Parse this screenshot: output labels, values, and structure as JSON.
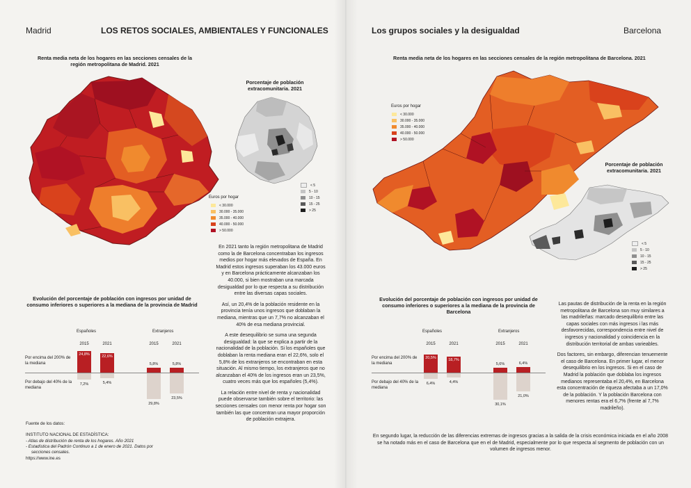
{
  "left": {
    "city": "Madrid",
    "section_title": "LOS RETOS SOCIALES, AMBIENTALES Y FUNCIONALES",
    "map_title": "Renta media neta de los hogares en las secciones censales de la región metropolitana de Madrid. 2021",
    "inset_title": "Porcentaje de población extracomunitaria. 2021",
    "inset_legend": [
      "< 5",
      "5 - 10",
      "10 - 15",
      "15 - 25",
      "> 25"
    ],
    "legend_title": "Euros por hogar",
    "legend": [
      "< 30.000",
      "30.000 - 35.000",
      "35.000 - 40.000",
      "40.000 - 50.000",
      "> 50.000"
    ],
    "text": [
      "En 2021 tanto la región metropolitana de Madrid como la de Barcelona concentraban los ingresos medios por hogar más elevados de España. En Madrid estos ingresos superaban los 43.000 euros y en Barcelona prácticamente alcanzaban los 40.000, si bien mostraban una marcada desigualdad por lo que respecta a su distribución entre las diversas capas sociales.",
      "Así, un 20,4% de la población residente en la provincia tenía unos ingresos que doblaban la mediana, mientras que un 7,7% no alcanzaban el 40% de esa mediana provincial.",
      "A este desequilibrio se suma una segunda desigualdad: la que se explica a partir de la nacionalidad de la población. Si los españoles que doblaban la renta mediana eran el 22,6%, solo el 5,8% de los extranjeros se encontraban en esta situación. Al mismo tiempo, los extranjeros que no alcanzaban el 40% de los ingresos eran un 23,5%, cuatro veces más que los españoles (5,4%).",
      "La relación entre nivel de renta y nacionalidad puede observarse también sobre el territorio: las secciones censales con menor renta por hogar son también las que concentran una mayor proporción de población extrajera."
    ],
    "chart": {
      "title": "Evolución del porcentaje de población con ingresos por unidad de consumo inferiores o superiores a la mediana de la provincia de Madrid",
      "group_labels": [
        "Españoles",
        "Extranjeros"
      ],
      "row_labels": [
        "Por encima del 200% de la mediana",
        "Por debajo del 40% de la mediana"
      ],
      "years": [
        "2015",
        "2021",
        "2015",
        "2021"
      ],
      "above": [
        "24,8%",
        "22,6%",
        "5,8%",
        "5,8%"
      ],
      "below": [
        "7,2%",
        "5,4%",
        "29,8%",
        "23,5%"
      ]
    },
    "source": {
      "label": "Fuente de los datos:",
      "org": "INSTITUTO NACIONAL DE ESTADÍSTICA:",
      "items": [
        "- Atlas de distribución de renta de los hogares. Año 2021",
        "- Estadística del Padrón Continuo a 1 de enero de 2021. Datos por",
        "secciones censales."
      ],
      "url": "https://www.ine.es"
    }
  },
  "right": {
    "city": "Barcelona",
    "section_title": "Los grupos sociales y la desigualdad",
    "map_title": "Renta media neta de los hogares en las secciones censales de la región metropolitana de Barcelona. 2021",
    "legend_title": "Euros por hogar",
    "legend": [
      "< 30.000",
      "30.000 - 35.000",
      "35.000 - 40.000",
      "40.000 - 50.000",
      "> 50.000"
    ],
    "inset_title": "Porcentaje de población extracomunitaria. 2021",
    "inset_legend": [
      "< 5",
      "5 - 10",
      "10 - 15",
      "15 - 25",
      "> 25"
    ],
    "chart": {
      "title": "Evolución del porcentaje de población con ingresos por unidad de consumo inferiores o superiores a la mediana de la provincia de Barcelona",
      "group_labels": [
        "Españoles",
        "Extranjeros"
      ],
      "row_labels": [
        "Por encima del 200% de la mediana",
        "Por debajo del 40% de la mediana"
      ],
      "years": [
        "2015",
        "2021",
        "2015",
        "2021"
      ],
      "above": [
        "20,5%",
        "18,7%",
        "5,6%",
        "6,4%"
      ],
      "below": [
        "6,4%",
        "4,4%",
        "30,1%",
        "21,0%"
      ]
    },
    "text": [
      "Las pautas de distribución de la renta en la región metropolitana de Barcelona son muy similares a las madrileñas: marcado desequilibrio entre las capas sociales con más ingresos i las más desfavorecidas, correspondencia entre nivel de ingresos y nacionalidad y coincidencia en la distribución territorial de ambas varieables.",
      "Dos factores, sin embargo, diferencian tenuemente el caso de Barcelona. En primer lugar, el menor desequilibrio en los ingresos. Si en el caso de Madrid la población que doblaba los ingresos medianos representaba el 20,4%, en Barcelona esta concentración de riqueza afectaba a un 17,0% de la población. Y la población Barcelona con menores rentas era el 6,7% (frente al 7,7% madrileño)."
    ],
    "bottom_text": "En segundo lugar, la reducción de las diferencias extremas de ingresos gracias a la salida de la crisis económica iniciada en el año 2008 se ha notado más en el caso de Barcelona que en el de Madrid, especialmente por lo que respecta al segmento de población con un volumen de ingresos menor."
  },
  "colors": {
    "legend": [
      "#fde89a",
      "#f9c063",
      "#f08a2e",
      "#d9421c",
      "#b01224"
    ],
    "inset_legend": [
      "#eeeeee",
      "#c4c4c4",
      "#8f8f8f",
      "#5a5a5a",
      "#1e1e1e"
    ],
    "bar_above": "#b81f23",
    "bar_below": "#ddd3cc"
  }
}
